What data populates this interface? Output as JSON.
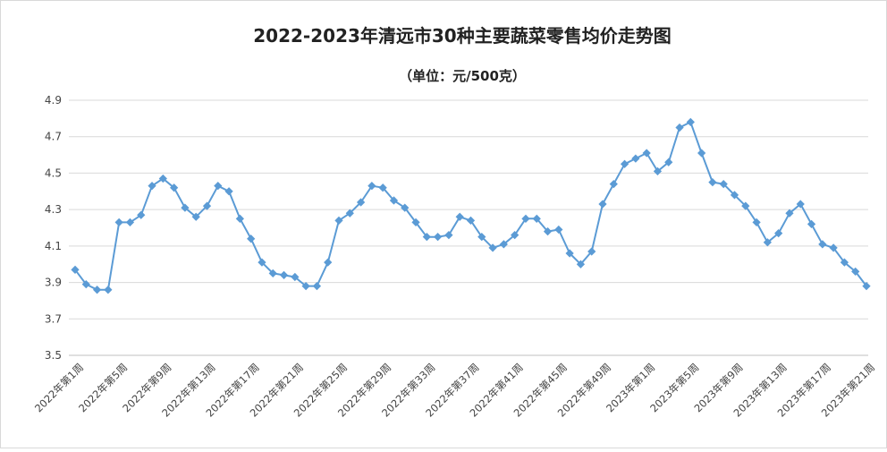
{
  "chart_data": {
    "type": "line",
    "title": "2022-2023年清远市30种主要蔬菜零售均价走势图",
    "subtitle": "（单位：元/500克）",
    "ylim": [
      3.5,
      4.9
    ],
    "yticks": [
      "3.5",
      "3.7",
      "3.9",
      "4.1",
      "4.3",
      "4.5",
      "4.7",
      "4.9"
    ],
    "grid": true,
    "legend": "none",
    "color": "#5B9BD5",
    "x_tick_labels": [
      "2022年第1周",
      "2022年第5周",
      "2022年第9周",
      "2022年第13周",
      "2022年第17周",
      "2022年第21周",
      "2022年第25周",
      "2022年第29周",
      "2022年第33周",
      "2022年第37周",
      "2022年第41周",
      "2022年第45周",
      "2022年第49周",
      "2023年第1周",
      "2023年第5周",
      "2023年第9周",
      "2023年第13周",
      "2023年第17周",
      "2023年第21周"
    ],
    "values": [
      3.97,
      3.89,
      3.86,
      3.86,
      4.23,
      4.23,
      4.27,
      4.43,
      4.47,
      4.42,
      4.31,
      4.26,
      4.32,
      4.43,
      4.4,
      4.25,
      4.14,
      4.01,
      3.95,
      3.94,
      3.93,
      3.88,
      3.88,
      4.01,
      4.24,
      4.28,
      4.34,
      4.43,
      4.42,
      4.35,
      4.31,
      4.23,
      4.15,
      4.15,
      4.16,
      4.26,
      4.24,
      4.15,
      4.09,
      4.11,
      4.16,
      4.25,
      4.25,
      4.18,
      4.19,
      4.06,
      4.0,
      4.07,
      4.33,
      4.44,
      4.55,
      4.58,
      4.61,
      4.51,
      4.56,
      4.75,
      4.78,
      4.61,
      4.45,
      4.44,
      4.38,
      4.32,
      4.23,
      4.12,
      4.17,
      4.28,
      4.33,
      4.22,
      4.11,
      4.09,
      4.01,
      3.96,
      3.88
    ]
  }
}
